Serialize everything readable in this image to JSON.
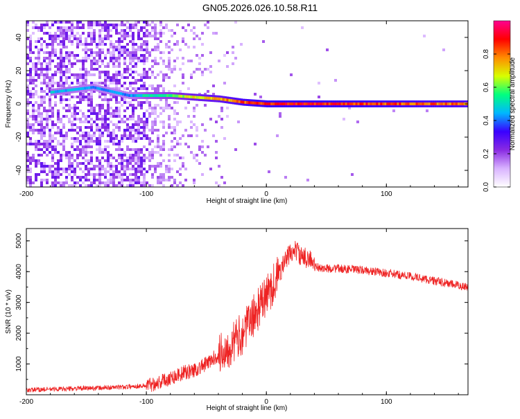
{
  "page": {
    "title": "GN05.2026.026.10.58.R11"
  },
  "chart_data": [
    {
      "type": "heatmap",
      "title": "GN05.2026.026.10.58.R11",
      "xlabel": "Height of straight line (km)",
      "ylabel": "Frequency (Hz)",
      "xlim": [
        -200,
        168
      ],
      "ylim": [
        -50,
        50
      ],
      "x_ticks": [
        -200,
        -100,
        0,
        100
      ],
      "y_ticks": [
        -40,
        -20,
        0,
        20,
        40
      ],
      "colorbar": {
        "label": "Normalized spectral amplitude",
        "range": [
          0,
          1
        ],
        "ticks": [
          "0.0",
          "0.2",
          "0.4",
          "0.6",
          "0.8"
        ],
        "stops": [
          "#ffffff",
          "#d9b3ff",
          "#8a2be2",
          "#3a00ff",
          "#00b7ff",
          "#00ff7f",
          "#d8ff00",
          "#ff8c00",
          "#ff0000",
          "#ff0090"
        ]
      },
      "signal_track": [
        {
          "x": -180,
          "f": 7,
          "amp": 0.5
        },
        {
          "x": -145,
          "f": 10,
          "amp": 0.45
        },
        {
          "x": -115,
          "f": 5,
          "amp": 0.45
        },
        {
          "x": -100,
          "f": 5,
          "amp": 0.55
        },
        {
          "x": -80,
          "f": 5,
          "amp": 0.6
        },
        {
          "x": -60,
          "f": 4,
          "amp": 0.75
        },
        {
          "x": -40,
          "f": 3,
          "amp": 0.8
        },
        {
          "x": -30,
          "f": 2,
          "amp": 0.85
        },
        {
          "x": -20,
          "f": 1,
          "amp": 0.9
        },
        {
          "x": 0,
          "f": 0,
          "amp": 0.95
        },
        {
          "x": 50,
          "f": 0,
          "amp": 0.95
        },
        {
          "x": 100,
          "f": 0,
          "amp": 0.9
        },
        {
          "x": 168,
          "f": 0,
          "amp": 0.85
        }
      ],
      "colors": {
        "noise": "#8a2be2",
        "track": "#ff0000"
      }
    },
    {
      "type": "line",
      "xlabel": "Height of straight line (km)",
      "ylabel": "SNR (10 * v/v)",
      "xlim": [
        -200,
        168
      ],
      "ylim": [
        0,
        5400
      ],
      "x_ticks": [
        -200,
        -100,
        0,
        100
      ],
      "y_ticks": [
        1000,
        2000,
        3000,
        4000,
        5000
      ],
      "color": "#ee2222",
      "x": [
        -200,
        -180,
        -160,
        -140,
        -120,
        -100,
        -90,
        -80,
        -70,
        -60,
        -50,
        -40,
        -30,
        -20,
        -10,
        0,
        10,
        15,
        20,
        25,
        30,
        35,
        40,
        50,
        60,
        80,
        100,
        120,
        140,
        160,
        168
      ],
      "y": [
        150,
        180,
        200,
        220,
        250,
        300,
        400,
        550,
        700,
        800,
        1000,
        1300,
        1600,
        2000,
        2600,
        3200,
        3900,
        4300,
        4600,
        4700,
        4400,
        4500,
        4150,
        4100,
        4100,
        4050,
        3950,
        3850,
        3700,
        3550,
        3500
      ]
    }
  ]
}
